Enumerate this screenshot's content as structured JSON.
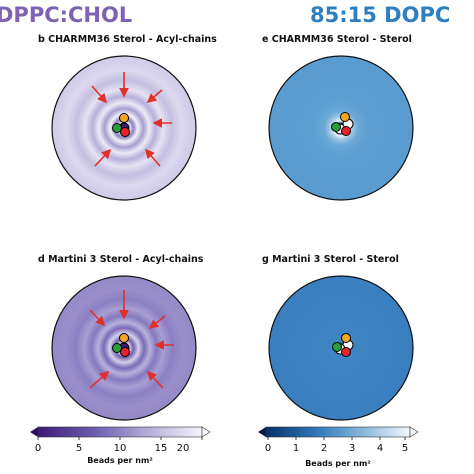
{
  "header": {
    "left_title": "DPPC:CHOL",
    "right_title": "85:15 DOPC"
  },
  "panels": [
    {
      "id": "b",
      "title": "b CHARMM36 Sterol - Acyl-chains",
      "map": "purple",
      "arrows": true
    },
    {
      "id": "e",
      "title": "e CHARMM36 Sterol - Sterol",
      "map": "blue",
      "arrows": false
    },
    {
      "id": "d",
      "title": "d Martini 3 Sterol - Acyl-chains",
      "map": "purple",
      "arrows": true
    },
    {
      "id": "g",
      "title": "g Martini 3 Sterol - Sterol",
      "map": "blue",
      "arrows": false
    }
  ],
  "colorbars": [
    {
      "label": "Beads per nm²",
      "ticks": [
        "0",
        "5",
        "10",
        "15",
        "20"
      ],
      "range": [
        0,
        20
      ],
      "colormap": "purple"
    },
    {
      "label": "Beads per nm²",
      "ticks": [
        "0",
        "1",
        "2",
        "3",
        "4",
        "5"
      ],
      "range": [
        0,
        5
      ],
      "colormap": "blue"
    }
  ],
  "colors": {
    "purple_dark": "#3c1a78",
    "purple_mid": "#8b80c0",
    "purple_light": "#f2f0f8",
    "blue_dark": "#08306b",
    "blue_mid": "#3f85c4",
    "blue_light": "#dceaf6",
    "arrow": "#e0302a",
    "bead_orange": "#f5a623",
    "bead_green": "#2a9d3a",
    "bead_red": "#e8222a",
    "bead_white": "#ffffff"
  }
}
